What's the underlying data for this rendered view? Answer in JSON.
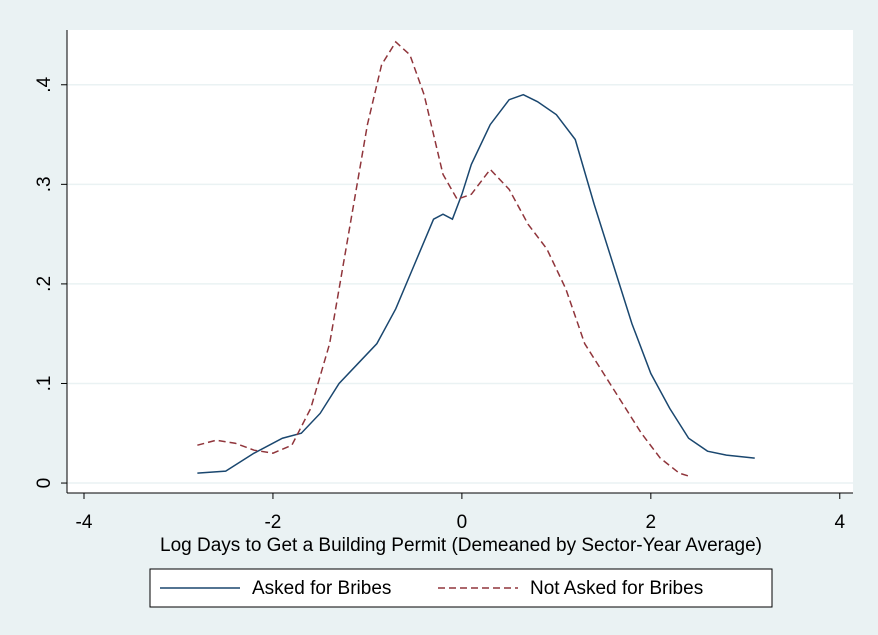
{
  "chart_data": {
    "type": "line",
    "xlabel": "Log Days to Get a Building Permit (Demeaned by Sector-Year Average)",
    "xlim": [
      -4.18,
      4.14
    ],
    "xticks": [
      -4,
      -2,
      0,
      2,
      4
    ],
    "ylim": [
      -0.01,
      0.455
    ],
    "yticks": [
      0,
      {
        "value": 0.1,
        "label": ".1"
      },
      {
        "value": 0.2,
        "label": ".2"
      },
      {
        "value": 0.3,
        "label": ".3"
      },
      {
        "value": 0.4,
        "label": ".4"
      }
    ],
    "grid": true,
    "legend": "bottom",
    "series": [
      {
        "name": "Asked for Bribes",
        "color": "#1a476f",
        "dash": false,
        "x": [
          -2.8,
          -2.5,
          -2.2,
          -1.9,
          -1.7,
          -1.5,
          -1.3,
          -1.1,
          -0.9,
          -0.7,
          -0.5,
          -0.3,
          -0.2,
          -0.1,
          0,
          0.1,
          0.3,
          0.5,
          0.65,
          0.8,
          1.0,
          1.2,
          1.4,
          1.6,
          1.8,
          2.0,
          2.2,
          2.4,
          2.6,
          2.8,
          3.1
        ],
        "values": [
          0.01,
          0.012,
          0.03,
          0.045,
          0.05,
          0.07,
          0.1,
          0.12,
          0.14,
          0.175,
          0.22,
          0.265,
          0.27,
          0.265,
          0.29,
          0.32,
          0.36,
          0.385,
          0.39,
          0.383,
          0.37,
          0.345,
          0.28,
          0.22,
          0.16,
          0.11,
          0.075,
          0.045,
          0.032,
          0.028,
          0.025
        ]
      },
      {
        "name": "Not Asked for Bribes",
        "color": "#90353b",
        "dash": true,
        "x": [
          -2.8,
          -2.6,
          -2.4,
          -2.2,
          -2.0,
          -1.8,
          -1.6,
          -1.4,
          -1.2,
          -1.0,
          -0.85,
          -0.7,
          -0.55,
          -0.4,
          -0.2,
          -0.05,
          0.1,
          0.3,
          0.5,
          0.7,
          0.9,
          1.1,
          1.3,
          1.5,
          1.7,
          1.9,
          2.1,
          2.3,
          2.4
        ],
        "values": [
          0.038,
          0.043,
          0.04,
          0.033,
          0.03,
          0.038,
          0.075,
          0.14,
          0.25,
          0.36,
          0.42,
          0.443,
          0.43,
          0.39,
          0.31,
          0.285,
          0.29,
          0.315,
          0.295,
          0.26,
          0.235,
          0.195,
          0.14,
          0.11,
          0.08,
          0.05,
          0.025,
          0.01,
          0.007
        ]
      }
    ]
  }
}
